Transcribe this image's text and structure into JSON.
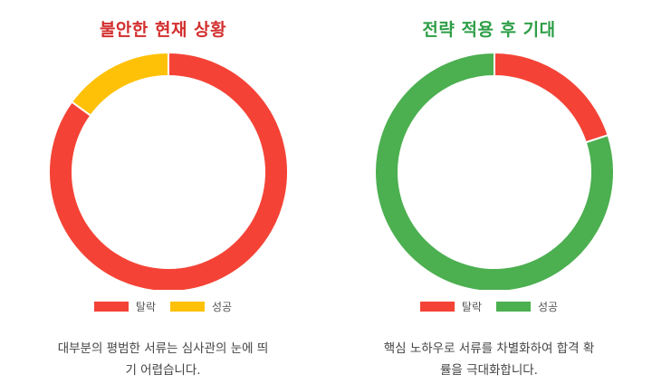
{
  "chart_data": [
    {
      "type": "pie",
      "title": "불안한 현재 상황",
      "title_color": "#d32f2f",
      "categories": [
        "탈락",
        "성공"
      ],
      "values": [
        85,
        15
      ],
      "colors": [
        "#f44336",
        "#ffc107"
      ],
      "legend_placement": "bottom",
      "caption_lines": [
        "대부분의 평범한 서류는 심사관의 눈에 띄",
        "기 어렵습니다."
      ]
    },
    {
      "type": "pie",
      "title": "전략 적용 후 기대",
      "title_color": "#2e9e47",
      "categories": [
        "탈락",
        "성공"
      ],
      "values": [
        20,
        80
      ],
      "colors": [
        "#f44336",
        "#4caf50"
      ],
      "legend_placement": "bottom",
      "caption_lines": [
        "핵심 노하우로 서류를 차별화하여 합격 확",
        "률을 극대화합니다."
      ]
    }
  ]
}
